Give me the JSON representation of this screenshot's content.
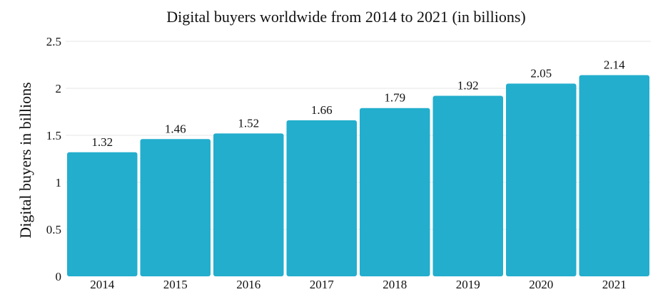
{
  "chart_data": {
    "type": "bar",
    "title": "Digital buyers worldwide from 2014 to 2021 (in billions)",
    "xlabel": "",
    "ylabel": "Digital buyers in billions",
    "categories": [
      "2014",
      "2015",
      "2016",
      "2017",
      "2018",
      "2019",
      "2020",
      "2021"
    ],
    "values": [
      1.32,
      1.46,
      1.52,
      1.66,
      1.79,
      1.92,
      2.05,
      2.14
    ],
    "value_labels": [
      "1.32",
      "1.46",
      "1.52",
      "1.66",
      "1.79",
      "1.92",
      "2.05",
      "2.14"
    ],
    "ylim": [
      0,
      2.5
    ],
    "yticks": [
      0,
      0.5,
      1,
      1.5,
      2,
      2.5
    ],
    "ytick_labels": [
      "0",
      "0.5",
      "1",
      "1.5",
      "2",
      "2.5"
    ],
    "grid": true,
    "bar_color": "#23aecd",
    "grid_color": "#e6e6e6"
  }
}
